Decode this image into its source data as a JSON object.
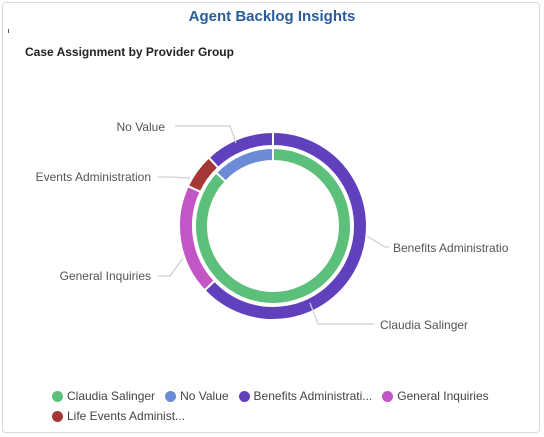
{
  "header": {
    "title": "Agent Backlog Insights"
  },
  "chart_data": {
    "type": "pie",
    "title": "Case Assignment by Provider Group",
    "rings": [
      {
        "name": "inner",
        "slices": [
          {
            "label": "Claudia Salinger",
            "value": 87,
            "color": "#5cbf7a"
          },
          {
            "label": "No Value",
            "value": 13,
            "color": "#6b8bd6"
          }
        ]
      },
      {
        "name": "outer",
        "slices": [
          {
            "label": "Benefits Administration",
            "value": 63,
            "color": "#6140be"
          },
          {
            "label": "General Inquiries",
            "value": 19,
            "color": "#c256c6"
          },
          {
            "label": "Events Administration",
            "value": 6,
            "color": "#a63737"
          },
          {
            "label": "",
            "value": 12,
            "color": "#6140be"
          }
        ]
      }
    ],
    "callouts": [
      {
        "text": "No Value"
      },
      {
        "text": "Events Administration"
      },
      {
        "text": "General Inquiries"
      },
      {
        "text": "Benefits Administratio"
      },
      {
        "text": "Claudia Salinger"
      }
    ],
    "legend": [
      {
        "label": "Claudia Salinger",
        "color": "#5cbf7a"
      },
      {
        "label": "No Value",
        "color": "#6b8bd6"
      },
      {
        "label": "Benefits Administrati...",
        "color": "#6140be"
      },
      {
        "label": "General Inquiries",
        "color": "#c256c6"
      },
      {
        "label": "Life Events Administ...",
        "color": "#a63737"
      }
    ],
    "legend_position": "bottom"
  }
}
